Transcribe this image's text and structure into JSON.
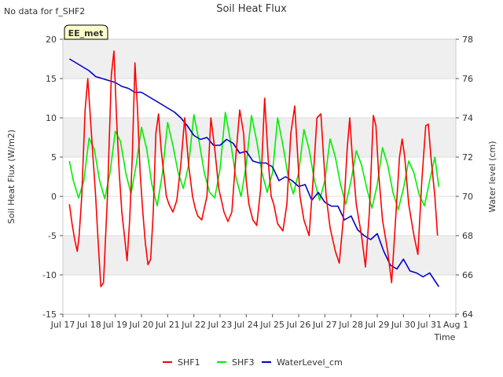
{
  "header": {
    "no_data_note": "No data for f_SHF2"
  },
  "station_badge": "EE_met",
  "chart_data": {
    "type": "line",
    "title": "Soil Heat Flux",
    "xlabel": "Time",
    "ylabel": "Soil Heat Flux (W/m2)",
    "y2label": "Water level (cm)",
    "xlim": [
      17,
      32
    ],
    "ylim": [
      -15,
      20
    ],
    "y2lim": [
      64,
      78
    ],
    "x_ticks": [
      17,
      18,
      19,
      20,
      21,
      22,
      23,
      24,
      25,
      26,
      27,
      28,
      29,
      30,
      31,
      32
    ],
    "x_tick_labels": [
      "Jul 17",
      "Jul 18",
      "Jul 19",
      "Jul 20",
      "Jul 21",
      "Jul 22",
      "Jul 23",
      "Jul 24",
      "Jul 25",
      "Jul 26",
      "Jul 27",
      "Jul 28",
      "Jul 29",
      "Jul 30",
      "Jul 31",
      "Aug 1"
    ],
    "y_ticks": [
      -15,
      -10,
      -5,
      0,
      5,
      10,
      15,
      20
    ],
    "y2_ticks": [
      64,
      66,
      68,
      70,
      72,
      74,
      76,
      78
    ],
    "bands": [
      [
        -10,
        -5
      ],
      [
        5,
        10
      ],
      [
        15,
        20
      ]
    ],
    "band_color": "#efefef",
    "series": [
      {
        "name": "SHF1",
        "axis": "left",
        "color": "#ff0000",
        "x": [
          17.25,
          17.35,
          17.45,
          17.55,
          17.62,
          17.72,
          17.85,
          17.95,
          18.05,
          18.15,
          18.25,
          18.35,
          18.45,
          18.55,
          18.7,
          18.85,
          18.95,
          19.05,
          19.15,
          19.25,
          19.35,
          19.45,
          19.55,
          19.65,
          19.75,
          19.85,
          19.95,
          20.05,
          20.15,
          20.25,
          20.35,
          20.45,
          20.55,
          20.65,
          20.75,
          20.85,
          20.95,
          21.05,
          21.2,
          21.35,
          21.5,
          21.65,
          21.8,
          21.95,
          22.05,
          22.15,
          22.3,
          22.5,
          22.65,
          22.8,
          22.95,
          23.05,
          23.15,
          23.3,
          23.45,
          23.6,
          23.75,
          23.9,
          24.0,
          24.1,
          24.25,
          24.4,
          24.55,
          24.7,
          24.85,
          24.95,
          25.05,
          25.2,
          25.4,
          25.55,
          25.7,
          25.85,
          25.95,
          26.05,
          26.2,
          26.4,
          26.55,
          26.7,
          26.85,
          26.95,
          27.05,
          27.2,
          27.4,
          27.55,
          27.7,
          27.85,
          27.95,
          28.05,
          28.2,
          28.4,
          28.55,
          28.7,
          28.85,
          28.95,
          29.05,
          29.2,
          29.4,
          29.55,
          29.7,
          29.85,
          29.95,
          30.05,
          30.2,
          30.4,
          30.55,
          30.7,
          30.85,
          30.95,
          31.05,
          31.2,
          31.3
        ],
        "y": [
          -1,
          -3.5,
          -5.5,
          -7,
          -5,
          0,
          11,
          15,
          10,
          5,
          0,
          -6,
          -11.5,
          -11,
          0,
          15.5,
          18.5,
          10,
          3,
          -2,
          -5,
          -8.2,
          -3,
          5,
          17,
          11,
          3,
          -2,
          -6,
          -8.7,
          -8,
          -2,
          8,
          10.5,
          6,
          3,
          0,
          -1,
          -2,
          -0.5,
          4,
          10,
          4,
          0,
          -1.5,
          -2.5,
          -3,
          0,
          10,
          6,
          1,
          -0.5,
          -2,
          -3.2,
          -2,
          5,
          11,
          8,
          2,
          -1,
          -3,
          -3.7,
          1,
          12.5,
          4,
          0,
          -1,
          -3.5,
          -4.4,
          -1,
          8,
          11.5,
          6,
          0,
          -3,
          -5,
          2,
          10,
          10.5,
          5,
          0,
          -4,
          -7,
          -8.5,
          -3,
          6,
          10,
          5,
          -1,
          -5,
          -9,
          -2,
          10.3,
          9,
          3,
          -3,
          -7,
          -11,
          -3,
          5,
          7.3,
          5,
          -1,
          -5,
          -7.4,
          2,
          9,
          9.2,
          5,
          0,
          -5
        ],
        "label": "SHF1"
      },
      {
        "name": "SHF3",
        "axis": "left",
        "color": "#00ee00",
        "x": [
          17.25,
          17.4,
          17.6,
          17.8,
          18.0,
          18.2,
          18.4,
          18.6,
          18.8,
          19.0,
          19.2,
          19.4,
          19.6,
          19.8,
          20.0,
          20.2,
          20.4,
          20.6,
          20.8,
          21.0,
          21.2,
          21.4,
          21.6,
          21.8,
          22.0,
          22.2,
          22.4,
          22.6,
          22.8,
          23.0,
          23.2,
          23.4,
          23.6,
          23.8,
          24.0,
          24.2,
          24.4,
          24.6,
          24.8,
          25.0,
          25.2,
          25.4,
          25.6,
          25.8,
          26.0,
          26.2,
          26.4,
          26.6,
          26.8,
          27.0,
          27.2,
          27.4,
          27.6,
          27.8,
          28.0,
          28.2,
          28.4,
          28.6,
          28.8,
          29.0,
          29.2,
          29.4,
          29.6,
          29.8,
          30.0,
          30.2,
          30.4,
          30.6,
          30.8,
          31.0,
          31.2,
          31.35
        ],
        "y": [
          4.5,
          2,
          -0.2,
          2,
          7.4,
          6,
          2,
          -0.3,
          3,
          8.3,
          7,
          3,
          0.3,
          4,
          8.8,
          6,
          1.5,
          -1.2,
          3,
          9.4,
          6.5,
          3,
          1,
          4,
          10.4,
          7,
          3,
          0.5,
          -0.2,
          3.5,
          10.7,
          7,
          2.5,
          0,
          4,
          10.3,
          7,
          3,
          0.5,
          3,
          10,
          6.5,
          2.5,
          0.3,
          3,
          8.5,
          6,
          2,
          -0.5,
          2,
          7.3,
          5,
          1.5,
          -1,
          2,
          5.8,
          4,
          1,
          -1.5,
          1.5,
          6.2,
          4,
          0.5,
          -1.7,
          1,
          4.5,
          3,
          0.2,
          -1.2,
          2,
          5,
          1.2
        ],
        "label": "SHF3"
      },
      {
        "name": "WaterLevel_cm",
        "axis": "right",
        "color": "#0000cc",
        "x": [
          17.25,
          17.5,
          17.75,
          18.0,
          18.25,
          18.5,
          18.75,
          19.0,
          19.25,
          19.5,
          19.75,
          20.0,
          20.25,
          20.5,
          20.75,
          21.0,
          21.25,
          21.5,
          21.75,
          22.0,
          22.25,
          22.5,
          22.75,
          23.0,
          23.25,
          23.5,
          23.75,
          24.0,
          24.25,
          24.5,
          24.75,
          25.0,
          25.25,
          25.5,
          25.75,
          26.0,
          26.25,
          26.5,
          26.75,
          27.0,
          27.25,
          27.5,
          27.75,
          28.0,
          28.25,
          28.5,
          28.75,
          29.0,
          29.25,
          29.5,
          29.75,
          30.0,
          30.25,
          30.5,
          30.75,
          31.0,
          31.25,
          31.35
        ],
        "y": [
          77,
          76.8,
          76.6,
          76.4,
          76.1,
          76.0,
          75.9,
          75.8,
          75.6,
          75.5,
          75.3,
          75.3,
          75.1,
          74.9,
          74.7,
          74.5,
          74.3,
          74.0,
          73.6,
          73.1,
          72.9,
          73.0,
          72.6,
          72.6,
          72.9,
          72.7,
          72.2,
          72.3,
          71.8,
          71.7,
          71.7,
          71.5,
          70.8,
          71.0,
          70.8,
          70.5,
          70.6,
          69.8,
          70.2,
          69.7,
          69.5,
          69.5,
          68.8,
          69.0,
          68.3,
          68.0,
          67.8,
          68.1,
          67.2,
          66.5,
          66.3,
          66.8,
          66.2,
          66.1,
          65.9,
          66.1,
          65.6,
          65.4
        ],
        "label": "WaterLevel_cm"
      }
    ],
    "legend_position": "bottom-center"
  }
}
